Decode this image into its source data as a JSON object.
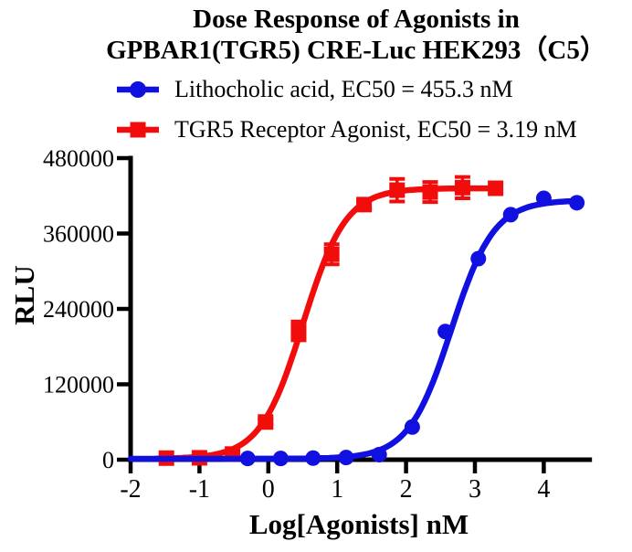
{
  "title": {
    "line1": "Dose Response of Agonists in",
    "line2": "GPBAR1(TGR5) CRE-Luc HEK293（C5）"
  },
  "chart_data": {
    "type": "line",
    "title": "Dose Response of Agonists in GPBAR1(TGR5) CRE-Luc HEK293（C5）",
    "xlabel": "Log[Agonists] nM",
    "ylabel": "RLU",
    "xlim": [
      -2,
      4.7
    ],
    "ylim": [
      0,
      480000
    ],
    "xticks": [
      -2,
      -1,
      0,
      1,
      2,
      3,
      4
    ],
    "yticks": [
      0,
      120000,
      240000,
      360000,
      480000
    ],
    "grid": false,
    "legend_position": "top",
    "axis_color": "#000000",
    "background": "#ffffff",
    "series": [
      {
        "name": "Lithocholic acid",
        "legend_label": "Lithocholic acid, EC50 = 455.3 nM",
        "ec50_nM": 455.3,
        "color": "#1010E0",
        "marker": "circle",
        "points": [
          {
            "x": -0.3,
            "y": 2000,
            "err": 0
          },
          {
            "x": 0.18,
            "y": 2000,
            "err": 0
          },
          {
            "x": 0.65,
            "y": 2500,
            "err": 0
          },
          {
            "x": 1.13,
            "y": 3500,
            "err": 0
          },
          {
            "x": 1.61,
            "y": 8000,
            "err": 0
          },
          {
            "x": 2.09,
            "y": 52000,
            "err": 0
          },
          {
            "x": 2.57,
            "y": 204000,
            "err": 0
          },
          {
            "x": 3.05,
            "y": 320000,
            "err": 0
          },
          {
            "x": 3.52,
            "y": 390000,
            "err": 0
          },
          {
            "x": 4.0,
            "y": 416000,
            "err": 0
          },
          {
            "x": 4.48,
            "y": 409000,
            "err": 0
          }
        ],
        "fit": {
          "bottom": 1500,
          "top": 413000,
          "logEC50": 2.658,
          "hill": 1.4,
          "xmin": -2.0,
          "xmax": 4.52
        }
      },
      {
        "name": "TGR5 Receptor Agonist",
        "legend_label": "TGR5 Receptor Agonist, EC50 = 3.19 nM",
        "ec50_nM": 3.19,
        "color": "#F20D0D",
        "marker": "square",
        "points": [
          {
            "x": -1.48,
            "y": 2500,
            "err": 0
          },
          {
            "x": -1.0,
            "y": 3000,
            "err": 0
          },
          {
            "x": -0.52,
            "y": 9000,
            "err": 0
          },
          {
            "x": -0.04,
            "y": 60000,
            "err": 4000
          },
          {
            "x": 0.44,
            "y": 205000,
            "err": 15000
          },
          {
            "x": 0.92,
            "y": 327000,
            "err": 16000
          },
          {
            "x": 1.39,
            "y": 406000,
            "err": 6000
          },
          {
            "x": 1.87,
            "y": 429000,
            "err": 18000
          },
          {
            "x": 2.35,
            "y": 426000,
            "err": 16000
          },
          {
            "x": 2.82,
            "y": 433000,
            "err": 17000
          },
          {
            "x": 3.3,
            "y": 432000,
            "err": 0
          }
        ],
        "fit": {
          "bottom": 1500,
          "top": 432000,
          "logEC50": 0.504,
          "hill": 1.4,
          "xmin": -1.62,
          "xmax": 3.32
        }
      }
    ]
  }
}
